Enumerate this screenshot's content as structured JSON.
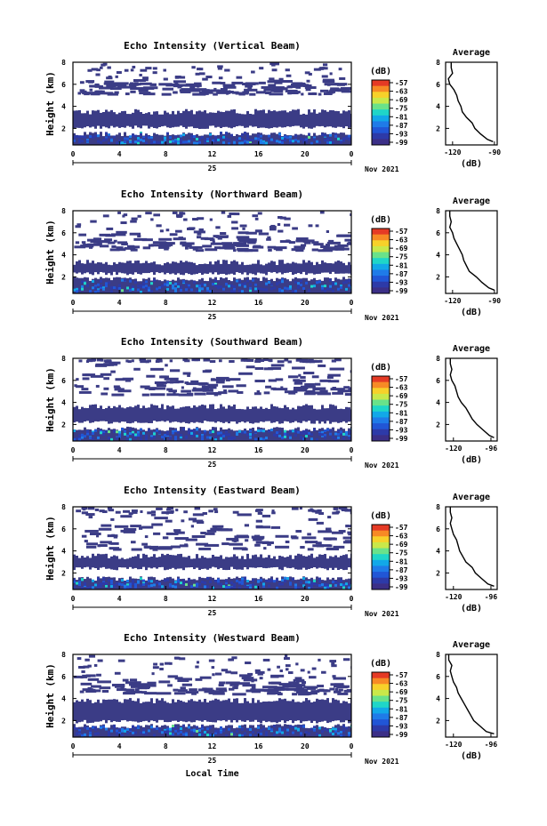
{
  "figure": {
    "x_axis_label": "Local Time",
    "date_label": "Nov 2021",
    "day_label": "25",
    "height_label": "Height (km)",
    "avg_title": "Average",
    "avg_unit": "(dB)",
    "colorbar_unit": "(dB)"
  },
  "chart_data": [
    {
      "type": "heatmap",
      "title": "Echo Intensity (Vertical Beam)",
      "ylabel": "Height (km)",
      "x_ticks": [
        "0",
        "4",
        "8",
        "12",
        "16",
        "20",
        "0"
      ],
      "y_ticks": [
        "8",
        "6",
        "4",
        "2"
      ],
      "xlim": [
        0,
        24
      ],
      "ylim": [
        0.5,
        8
      ],
      "colorbar_ticks": [
        "-57",
        "-63",
        "-69",
        "-75",
        "-81",
        "-87",
        "-93",
        "-99"
      ],
      "layers": {
        "low_top": 1.5,
        "mid_base": 2.1,
        "mid_top": 3.5,
        "upper_band": [
          5.2,
          6.5
        ]
      },
      "average_profile": {
        "title": "Average",
        "xlabel": "(dB)",
        "x_ticks": [
          "-120",
          "-90"
        ],
        "y_ticks": [
          "8",
          "6",
          "4",
          "2"
        ],
        "xlim": [
          -125,
          -88
        ],
        "ylim": [
          0.5,
          8
        ],
        "height": [
          0.8,
          1.0,
          1.5,
          2.0,
          2.5,
          3.0,
          3.5,
          4.0,
          4.5,
          5.0,
          5.5,
          6.0,
          6.5,
          7.0,
          7.5,
          8.0
        ],
        "value": [
          -91,
          -95,
          -100,
          -104,
          -106,
          -110,
          -113,
          -114,
          -116,
          -117,
          -119,
          -122,
          -123,
          -120,
          -121,
          -121
        ]
      }
    },
    {
      "type": "heatmap",
      "title": "Echo Intensity (Northward Beam)",
      "ylabel": "Height (km)",
      "x_ticks": [
        "0",
        "4",
        "8",
        "12",
        "16",
        "20",
        "0"
      ],
      "y_ticks": [
        "8",
        "6",
        "4",
        "2"
      ],
      "xlim": [
        0,
        24
      ],
      "ylim": [
        0.5,
        8
      ],
      "colorbar_ticks": [
        "-57",
        "-63",
        "-69",
        "-75",
        "-81",
        "-87",
        "-93",
        "-99"
      ],
      "layers": {
        "low_top": 1.8,
        "mid_base": 2.3,
        "mid_top": 3.3,
        "upper_band": [
          4.5,
          6.2
        ]
      },
      "average_profile": {
        "title": "Average",
        "xlabel": "(dB)",
        "x_ticks": [
          "-120",
          "-90"
        ],
        "y_ticks": [
          "8",
          "6",
          "4",
          "2"
        ],
        "xlim": [
          -125,
          -88
        ],
        "ylim": [
          0.5,
          8
        ],
        "height": [
          0.8,
          1.0,
          1.5,
          2.0,
          2.5,
          3.0,
          3.5,
          4.0,
          4.5,
          5.0,
          5.5,
          6.0,
          6.5,
          7.0,
          7.5,
          8.0
        ],
        "value": [
          -90,
          -94,
          -99,
          -103,
          -108,
          -110,
          -112,
          -113,
          -115,
          -117,
          -119,
          -120,
          -122,
          -121,
          -122,
          -122
        ]
      }
    },
    {
      "type": "heatmap",
      "title": "Echo Intensity (Southward Beam)",
      "ylabel": "Height (km)",
      "x_ticks": [
        "0",
        "4",
        "8",
        "12",
        "16",
        "20",
        "0"
      ],
      "y_ticks": [
        "8",
        "6",
        "4",
        "2"
      ],
      "xlim": [
        0,
        24
      ],
      "ylim": [
        0.5,
        8
      ],
      "colorbar_ticks": [
        "-57",
        "-63",
        "-69",
        "-75",
        "-81",
        "-87",
        "-93",
        "-99"
      ],
      "layers": {
        "low_top": 1.6,
        "mid_base": 2.2,
        "mid_top": 3.6,
        "upper_band": [
          4.8,
          7.8
        ]
      },
      "average_profile": {
        "title": "Average",
        "xlabel": "(dB)",
        "x_ticks": [
          "-120",
          "-96"
        ],
        "y_ticks": [
          "8",
          "6",
          "4",
          "2"
        ],
        "xlim": [
          -125,
          -92
        ],
        "ylim": [
          0.5,
          8
        ],
        "height": [
          0.8,
          1.0,
          1.5,
          2.0,
          2.5,
          3.0,
          3.5,
          4.0,
          4.5,
          5.0,
          5.5,
          6.0,
          6.5,
          7.0,
          7.5,
          8.0
        ],
        "value": [
          -94,
          -97,
          -101,
          -105,
          -108,
          -110,
          -112,
          -115,
          -117,
          -118,
          -119,
          -121,
          -122,
          -121,
          -122,
          -122
        ]
      }
    },
    {
      "type": "heatmap",
      "title": "Echo Intensity (Eastward Beam)",
      "ylabel": "Height (km)",
      "x_ticks": [
        "0",
        "4",
        "8",
        "12",
        "16",
        "20",
        "0"
      ],
      "y_ticks": [
        "8",
        "6",
        "4",
        "2"
      ],
      "xlim": [
        0,
        24
      ],
      "ylim": [
        0.5,
        8
      ],
      "colorbar_ticks": [
        "-57",
        "-63",
        "-69",
        "-75",
        "-81",
        "-87",
        "-93",
        "-99"
      ],
      "layers": {
        "low_top": 1.5,
        "mid_base": 2.4,
        "mid_top": 3.5,
        "upper_band": [
          4.2,
          7.5
        ]
      },
      "average_profile": {
        "title": "Average",
        "xlabel": "(dB)",
        "x_ticks": [
          "-120",
          "-96"
        ],
        "y_ticks": [
          "8",
          "6",
          "4",
          "2"
        ],
        "xlim": [
          -125,
          -92
        ],
        "ylim": [
          0.5,
          8
        ],
        "height": [
          0.8,
          1.0,
          1.5,
          2.0,
          2.5,
          3.0,
          3.5,
          4.0,
          4.5,
          5.0,
          5.5,
          6.0,
          6.5,
          7.0,
          7.5,
          8.0
        ],
        "value": [
          -94,
          -98,
          -102,
          -106,
          -108,
          -112,
          -114,
          -116,
          -117,
          -118,
          -120,
          -121,
          -122,
          -121,
          -122,
          -122
        ]
      }
    },
    {
      "type": "heatmap",
      "title": "Echo Intensity (Westward Beam)",
      "ylabel": "Height (km)",
      "x_ticks": [
        "0",
        "4",
        "8",
        "12",
        "16",
        "20",
        "0"
      ],
      "y_ticks": [
        "8",
        "6",
        "4",
        "2"
      ],
      "xlim": [
        0,
        24
      ],
      "ylim": [
        0.5,
        8
      ],
      "colorbar_ticks": [
        "-57",
        "-63",
        "-69",
        "-75",
        "-81",
        "-87",
        "-93",
        "-99"
      ],
      "layers": {
        "low_top": 1.5,
        "mid_base": 1.9,
        "mid_top": 3.8,
        "upper_band": [
          4.5,
          6.2
        ]
      },
      "average_profile": {
        "title": "Average",
        "xlabel": "(dB)",
        "x_ticks": [
          "-120",
          "-96"
        ],
        "y_ticks": [
          "8",
          "6",
          "4",
          "2"
        ],
        "xlim": [
          -125,
          -92
        ],
        "ylim": [
          0.5,
          8
        ],
        "height": [
          0.8,
          1.0,
          1.5,
          2.0,
          2.5,
          3.0,
          3.5,
          4.0,
          4.5,
          5.0,
          5.5,
          6.0,
          6.5,
          7.0,
          7.5,
          8.0
        ],
        "value": [
          -94,
          -99,
          -103,
          -107,
          -109,
          -111,
          -113,
          -115,
          -117,
          -118,
          -120,
          -121,
          -122,
          -121,
          -123,
          -123
        ]
      }
    }
  ],
  "colorbar_colors": [
    "#3b2f87",
    "#2d3aa8",
    "#2156d6",
    "#1f7be8",
    "#12a8e8",
    "#1fd6c8",
    "#69e28a",
    "#c9e84a",
    "#f7d12a",
    "#f78a25",
    "#e53a25"
  ],
  "mass_color": "#3b3c86"
}
